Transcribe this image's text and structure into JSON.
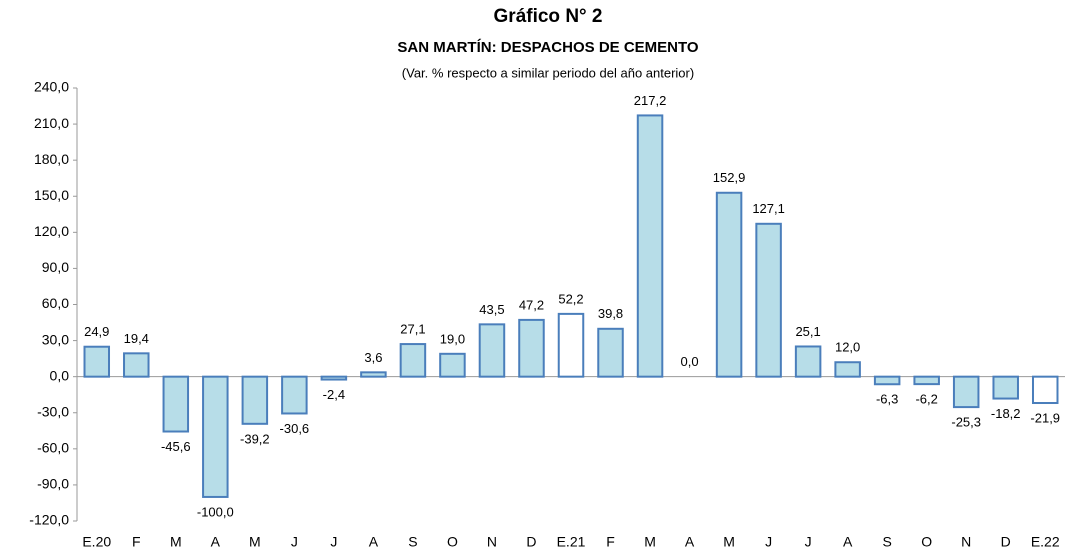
{
  "chart_data": {
    "type": "bar",
    "title": "Gráfico N° 2",
    "subtitle": "SAN MARTÍN: DESPACHOS DE CEMENTO",
    "note": "(Var. % respecto a similar periodo del año anterior)",
    "categories": [
      "E.20",
      "F",
      "M",
      "A",
      "M",
      "J",
      "J",
      "A",
      "S",
      "O",
      "N",
      "D",
      "E.21",
      "F",
      "M",
      "A",
      "M",
      "J",
      "J",
      "A",
      "S",
      "O",
      "N",
      "D",
      "E.22"
    ],
    "values": [
      24.9,
      19.4,
      -45.6,
      -100.0,
      -39.2,
      -30.6,
      -2.4,
      3.6,
      27.1,
      19.0,
      43.5,
      47.2,
      52.2,
      39.8,
      217.2,
      0.0,
      152.9,
      127.1,
      25.1,
      12.0,
      -6.3,
      -6.2,
      -25.3,
      -18.2,
      -21.9
    ],
    "value_labels": [
      "24,9",
      "19,4",
      "-45,6",
      "-100,0",
      "-39,2",
      "-30,6",
      "-2,4",
      "3,6",
      "27,1",
      "19,0",
      "43,5",
      "47,2",
      "52,2",
      "39,8",
      "217,2",
      "0,0",
      "152,9",
      "127,1",
      "25,1",
      "12,0",
      "-6,3",
      "-6,2",
      "-25,3",
      "-18,2",
      "-21,9"
    ],
    "colors": [
      "#b7dde8",
      "#b7dde8",
      "#b7dde8",
      "#b7dde8",
      "#b7dde8",
      "#b7dde8",
      "#b7dde8",
      "#b7dde8",
      "#b7dde8",
      "#b7dde8",
      "#b7dde8",
      "#b7dde8",
      "#ffffff",
      "#b7dde8",
      "#b7dde8",
      "#b7dde8",
      "#b7dde8",
      "#b7dde8",
      "#b7dde8",
      "#b7dde8",
      "#b7dde8",
      "#b7dde8",
      "#b7dde8",
      "#b7dde8",
      "#ffffff"
    ],
    "edge_color": "#4a7ebb",
    "ylim": [
      -120,
      240
    ],
    "yticks": [
      {
        "value": -120,
        "label": "-120,0"
      },
      {
        "value": -90,
        "label": "-90,0"
      },
      {
        "value": -60,
        "label": "-60,0"
      },
      {
        "value": -30,
        "label": "-30,0"
      },
      {
        "value": 0,
        "label": "0,0"
      },
      {
        "value": 30,
        "label": "30,0"
      },
      {
        "value": 60,
        "label": "60,0"
      },
      {
        "value": 90,
        "label": "90,0"
      },
      {
        "value": 120,
        "label": "120,0"
      },
      {
        "value": 150,
        "label": "150,0"
      },
      {
        "value": 180,
        "label": "180,0"
      },
      {
        "value": 210,
        "label": "210,0"
      },
      {
        "value": 240,
        "label": "240,0"
      }
    ],
    "grid": false
  }
}
